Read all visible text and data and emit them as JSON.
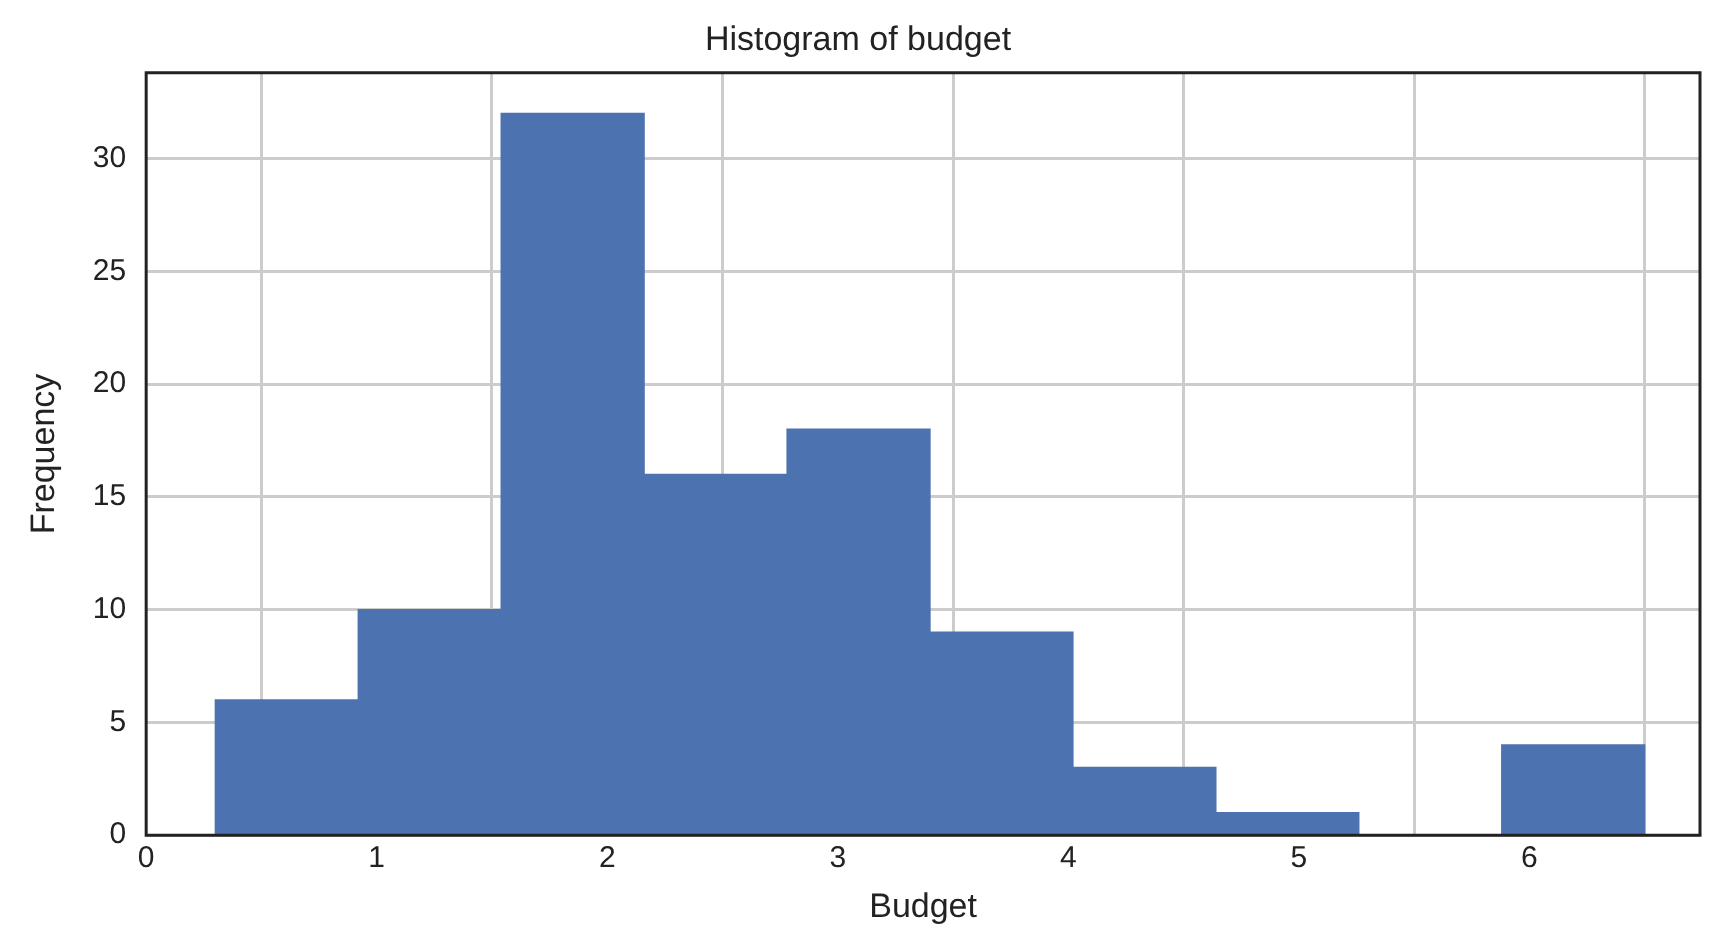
{
  "chart_data": {
    "type": "histogram",
    "title": "Histogram of budget",
    "xlabel": "Budget",
    "ylabel": "Frequency",
    "bins": [
      0.3,
      0.92,
      1.54,
      2.16,
      2.78,
      3.4,
      4.02,
      4.64,
      5.26,
      5.88,
      6.5
    ],
    "values": [
      6,
      10,
      32,
      16,
      18,
      9,
      3,
      1,
      0,
      4
    ],
    "color": "#4c72b0",
    "xlim": [
      0,
      6.74
    ],
    "xticks": [
      0,
      1,
      2,
      3,
      4,
      5,
      6
    ],
    "ylim": [
      0,
      33.8
    ],
    "yticks": [
      0,
      5,
      10,
      15,
      20,
      25,
      30
    ],
    "grid": true
  }
}
